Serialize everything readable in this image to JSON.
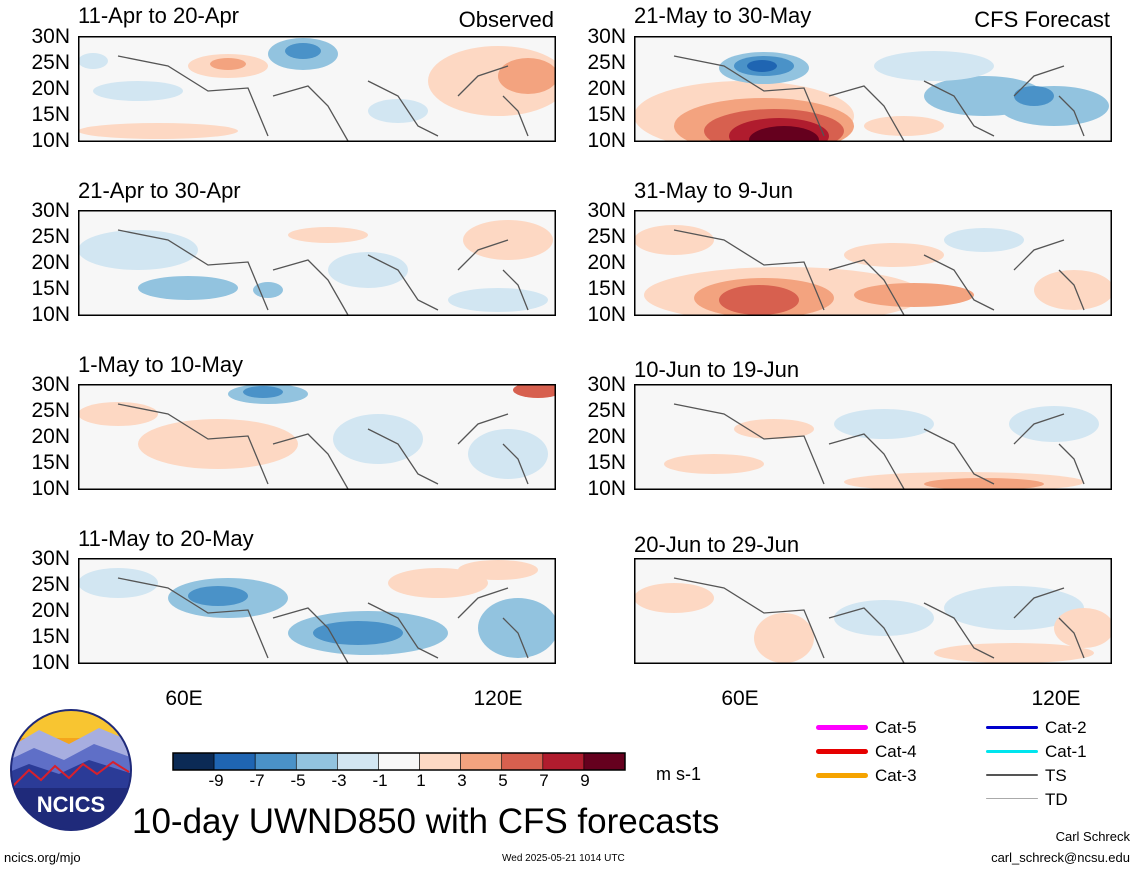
{
  "panels": [
    {
      "title": "11-Apr to 20-Apr",
      "tag": "Observed"
    },
    {
      "title": "21-Apr to 30-Apr",
      "tag": ""
    },
    {
      "title": "1-May to 10-May",
      "tag": ""
    },
    {
      "title": "11-May to 20-May",
      "tag": ""
    },
    {
      "title": "21-May to 30-May",
      "tag": "CFS Forecast"
    },
    {
      "title": "31-May to 9-Jun",
      "tag": ""
    },
    {
      "title": "10-Jun to 19-Jun",
      "tag": ""
    },
    {
      "title": "20-Jun to 29-Jun",
      "tag": ""
    }
  ],
  "lat_labels": [
    "30N",
    "25N",
    "20N",
    "15N",
    "10N"
  ],
  "lon_labels": [
    "60E",
    "120E"
  ],
  "colorbar": {
    "labels": [
      "-9",
      "-7",
      "-5",
      "-3",
      "-1",
      "1",
      "3",
      "5",
      "7",
      "9"
    ],
    "colors": [
      "#0b2a55",
      "#1f65b2",
      "#4a92c8",
      "#92c3df",
      "#d2e6f2",
      "#f7f7f7",
      "#fdd8c3",
      "#f3a37f",
      "#d7604f",
      "#b01c2e",
      "#65001e"
    ],
    "units": "m s-1"
  },
  "title": "10-day UWND850 with CFS forecasts",
  "logo_text": "NCICS",
  "footer": {
    "left": "ncics.org/mjo",
    "center": "Wed 2025-05-21 1014 UTC",
    "author": "Carl Schreck",
    "email": "carl_schreck@ncsu.edu"
  },
  "legend": [
    {
      "label": "Cat-5",
      "color": "#ff00ff"
    },
    {
      "label": "Cat-4",
      "color": "#e60000"
    },
    {
      "label": "Cat-3",
      "color": "#f5a300"
    },
    {
      "label": "Cat-2",
      "color": "#0000cc"
    },
    {
      "label": "Cat-1",
      "color": "#00e5ee"
    },
    {
      "label": "TS",
      "color": "#555555"
    },
    {
      "label": "TD",
      "color": "#aaaaaa"
    }
  ]
}
